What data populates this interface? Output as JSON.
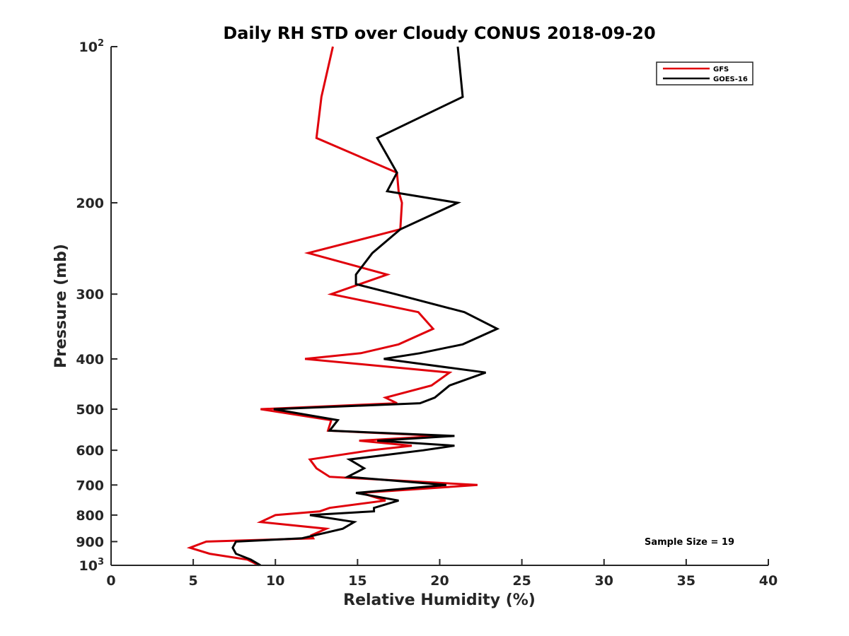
{
  "chart_data": {
    "type": "line",
    "title": "Daily RH STD over Cloudy CONUS 2018-09-20",
    "xlabel": "Relative Humidity (%)",
    "ylabel": "Pressure (mb)",
    "xlim": [
      0,
      40
    ],
    "ylim": [
      100,
      1000
    ],
    "y_scale": "log",
    "y_reversed": true,
    "grid": false,
    "legend_position": "top-right",
    "x_ticks": [
      0,
      5,
      10,
      15,
      20,
      25,
      30,
      35,
      40
    ],
    "y_ticks": [
      {
        "value": 100,
        "base": "10",
        "exp": "2"
      },
      {
        "value": 200,
        "label": "200"
      },
      {
        "value": 300,
        "label": "300"
      },
      {
        "value": 400,
        "label": "400"
      },
      {
        "value": 500,
        "label": "500"
      },
      {
        "value": 600,
        "label": "600"
      },
      {
        "value": 700,
        "label": "700"
      },
      {
        "value": 800,
        "label": "800"
      },
      {
        "value": 900,
        "label": "900"
      },
      {
        "value": 1000,
        "base": "10",
        "exp": "3"
      }
    ],
    "annotation": "Sample Size = 19",
    "series": [
      {
        "name": "GFS",
        "color": "#e0000b",
        "points": [
          [
            13.5,
            100
          ],
          [
            12.8,
            125
          ],
          [
            12.5,
            150
          ],
          [
            17.4,
            175
          ],
          [
            17.5,
            190
          ],
          [
            17.7,
            200
          ],
          [
            17.6,
            225
          ],
          [
            12.0,
            250
          ],
          [
            16.8,
            275
          ],
          [
            13.4,
            300
          ],
          [
            18.7,
            325
          ],
          [
            19.6,
            350
          ],
          [
            17.5,
            375
          ],
          [
            15.2,
            390
          ],
          [
            11.8,
            400
          ],
          [
            20.6,
            425
          ],
          [
            19.5,
            450
          ],
          [
            16.7,
            475
          ],
          [
            17.4,
            487
          ],
          [
            9.1,
            500
          ],
          [
            13.4,
            525
          ],
          [
            13.2,
            550
          ],
          [
            20.1,
            563
          ],
          [
            15.1,
            575
          ],
          [
            18.3,
            588
          ],
          [
            15.8,
            600
          ],
          [
            12.1,
            625
          ],
          [
            12.5,
            650
          ],
          [
            13.3,
            675
          ],
          [
            22.3,
            700
          ],
          [
            15.2,
            725
          ],
          [
            16.7,
            750
          ],
          [
            13.3,
            775
          ],
          [
            12.7,
            787
          ],
          [
            10.0,
            800
          ],
          [
            9.1,
            825
          ],
          [
            13.1,
            850
          ],
          [
            12.2,
            875
          ],
          [
            12.3,
            887
          ],
          [
            5.8,
            900
          ],
          [
            4.8,
            925
          ],
          [
            6.0,
            950
          ],
          [
            8.3,
            975
          ],
          [
            9.0,
            1000
          ]
        ]
      },
      {
        "name": "GOES-16",
        "color": "#000000",
        "points": [
          [
            21.1,
            100
          ],
          [
            21.4,
            125
          ],
          [
            16.2,
            150
          ],
          [
            17.4,
            175
          ],
          [
            16.8,
            190
          ],
          [
            21.1,
            200
          ],
          [
            17.6,
            225
          ],
          [
            15.9,
            250
          ],
          [
            14.9,
            275
          ],
          [
            14.9,
            287
          ],
          [
            17.3,
            300
          ],
          [
            21.5,
            325
          ],
          [
            23.5,
            350
          ],
          [
            21.4,
            375
          ],
          [
            18.8,
            390
          ],
          [
            16.6,
            400
          ],
          [
            22.8,
            425
          ],
          [
            20.6,
            450
          ],
          [
            19.7,
            475
          ],
          [
            18.8,
            487
          ],
          [
            9.9,
            500
          ],
          [
            13.8,
            525
          ],
          [
            13.3,
            550
          ],
          [
            20.9,
            563
          ],
          [
            16.2,
            575
          ],
          [
            20.9,
            588
          ],
          [
            19.0,
            600
          ],
          [
            14.5,
            625
          ],
          [
            15.4,
            650
          ],
          [
            14.4,
            675
          ],
          [
            20.4,
            700
          ],
          [
            14.9,
            725
          ],
          [
            17.5,
            750
          ],
          [
            16.0,
            775
          ],
          [
            16.0,
            787
          ],
          [
            12.1,
            800
          ],
          [
            14.8,
            825
          ],
          [
            14.1,
            850
          ],
          [
            12.4,
            875
          ],
          [
            11.6,
            887
          ],
          [
            7.6,
            900
          ],
          [
            7.4,
            925
          ],
          [
            7.6,
            950
          ],
          [
            8.5,
            975
          ],
          [
            9.1,
            1000
          ]
        ]
      }
    ]
  }
}
